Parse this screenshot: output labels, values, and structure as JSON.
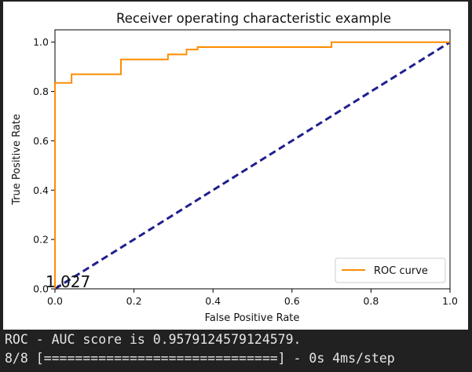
{
  "chart_data": {
    "type": "line",
    "title": "Receiver operating characteristic example",
    "xlabel": "False Positive Rate",
    "ylabel": "True Positive Rate",
    "xlim": [
      0.0,
      1.0
    ],
    "ylim": [
      0.0,
      1.05
    ],
    "xticks": [
      "0.0",
      "0.2",
      "0.4",
      "0.6",
      "0.8",
      "1.0"
    ],
    "yticks": [
      "0.0",
      "0.2",
      "0.4",
      "0.6",
      "0.8",
      "1.0"
    ],
    "grid": false,
    "legend_position": "lower-right",
    "annotation": "1.027",
    "colors": {
      "roc": "#ff8c00",
      "diagonal": "#1f1f8f"
    },
    "series": [
      {
        "name": "ROC curve",
        "style": "solid",
        "x": [
          0.0,
          0.0,
          0.042,
          0.042,
          0.167,
          0.167,
          0.286,
          0.286,
          0.333,
          0.333,
          0.361,
          0.361,
          0.7,
          0.7,
          1.0
        ],
        "y": [
          0.0,
          0.835,
          0.835,
          0.87,
          0.87,
          0.93,
          0.93,
          0.95,
          0.95,
          0.97,
          0.97,
          0.98,
          0.98,
          1.0,
          1.0
        ]
      },
      {
        "style": "dashed",
        "x": [
          0.0,
          1.0
        ],
        "y": [
          0.0,
          1.0
        ]
      }
    ]
  },
  "console": {
    "line1": "ROC - AUC score is 0.9579124579124579.",
    "line2": "8/8 [==============================] - 0s 4ms/step"
  }
}
